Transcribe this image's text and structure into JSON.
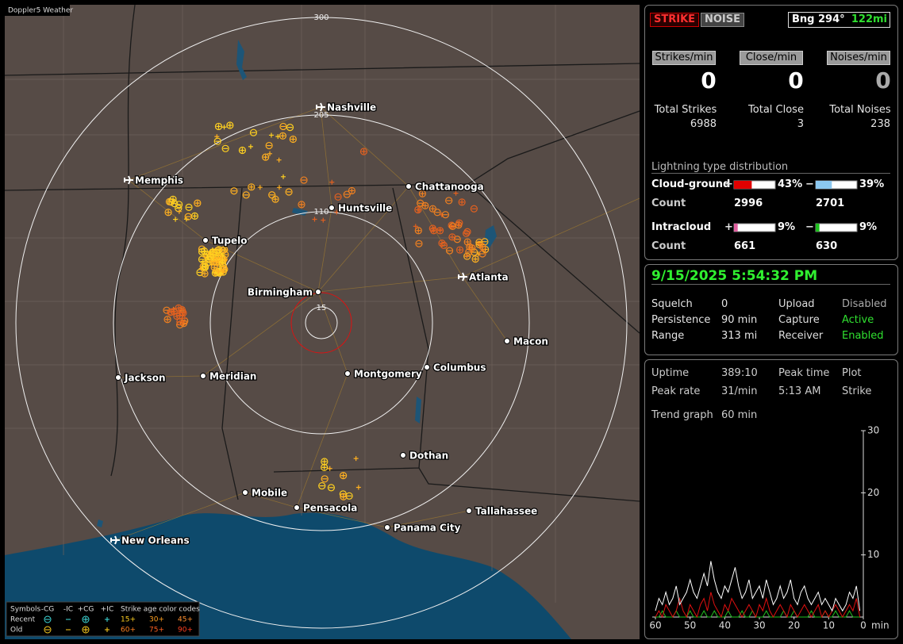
{
  "map": {
    "badge": "Doppler5 Weather",
    "ring_labels": [
      "300",
      "205",
      "110",
      "15"
    ],
    "cities": [
      {
        "name": "Nashville",
        "airport": true
      },
      {
        "name": "Memphis",
        "airport": true
      },
      {
        "name": "Chattanooga",
        "airport": false
      },
      {
        "name": "Huntsville",
        "airport": false
      },
      {
        "name": "Tupelo",
        "airport": false
      },
      {
        "name": "Birmingham",
        "airport": false
      },
      {
        "name": "Atlanta",
        "airport": true
      },
      {
        "name": "Macon",
        "airport": false
      },
      {
        "name": "Jackson",
        "airport": false
      },
      {
        "name": "Meridian",
        "airport": false
      },
      {
        "name": "Montgomery",
        "airport": false
      },
      {
        "name": "Columbus",
        "airport": false
      },
      {
        "name": "Dothan",
        "airport": false
      },
      {
        "name": "Mobile",
        "airport": false
      },
      {
        "name": "Pensacola",
        "airport": false
      },
      {
        "name": "Panama City",
        "airport": false
      },
      {
        "name": "Tallahassee",
        "airport": false
      },
      {
        "name": "New Orleans",
        "airport": true
      }
    ],
    "legend": {
      "symbols_title": "Symbols",
      "symbols": [
        "-CG",
        "-IC",
        "+CG",
        "+IC"
      ],
      "age_title": "Strike age color codes",
      "rows": [
        {
          "label": "Recent",
          "ages": [
            "15+",
            "30+",
            "45+"
          ]
        },
        {
          "label": "Old",
          "ages": [
            "60+",
            "75+",
            "90+"
          ]
        }
      ]
    }
  },
  "strike_panel": {
    "modes": [
      "STRIKE",
      "NOISE"
    ],
    "bearing": "Bng 294°",
    "distance": "122mi",
    "rate_headers": [
      "Strikes/min",
      "Close/min",
      "Noises/min"
    ],
    "rates": [
      0,
      0,
      0
    ],
    "total_labels": [
      "Total Strikes",
      "Total Close",
      "Total Noises"
    ],
    "totals": [
      6988,
      3,
      238
    ],
    "dist_title": "Lightning type distribution",
    "types": [
      {
        "name": "Cloud-ground",
        "pos_sign": "+",
        "pos": {
          "value": 43,
          "label": "43%"
        },
        "pos_color": "#e00000",
        "neg_sign": "−",
        "neg": {
          "value": 39,
          "label": "39%"
        },
        "neg_color": "#8cc8f0",
        "count_label": "Count",
        "pos_count": 2996,
        "neg_count": 2701
      },
      {
        "name": "Intracloud",
        "pos_sign": "+",
        "pos": {
          "value": 9,
          "label": "9%"
        },
        "pos_color": "#e060a0",
        "neg_sign": "−",
        "neg": {
          "value": 9,
          "label": "9%"
        },
        "neg_color": "#20c020",
        "count_label": "Count",
        "pos_count": 661,
        "neg_count": 630
      }
    ]
  },
  "status_panel": {
    "datetime": "9/15/2025 5:54:32 PM",
    "rows": [
      [
        "Squelch",
        "0",
        "Upload",
        "Disabled"
      ],
      [
        "Persistence",
        "90 min",
        "Capture",
        "Active"
      ],
      [
        "Range",
        "313 mi",
        "Receiver",
        "Enabled"
      ]
    ]
  },
  "uptime_panel": {
    "rows": [
      [
        "Uptime",
        "389:10",
        "Peak time",
        "Plot"
      ],
      [
        "Peak rate",
        "31/min",
        "5:13 AM",
        "Strike"
      ]
    ],
    "trend_label": "Trend graph",
    "trend_value": "60 min"
  },
  "chart_data": {
    "type": "line",
    "x": [
      60,
      59,
      58,
      57,
      56,
      55,
      54,
      53,
      52,
      51,
      50,
      49,
      48,
      47,
      46,
      45,
      44,
      43,
      42,
      41,
      40,
      39,
      38,
      37,
      36,
      35,
      34,
      33,
      32,
      31,
      30,
      29,
      28,
      27,
      26,
      25,
      24,
      23,
      22,
      21,
      20,
      19,
      18,
      17,
      16,
      15,
      14,
      13,
      12,
      11,
      10,
      9,
      8,
      7,
      6,
      5,
      4,
      3,
      2,
      1
    ],
    "xlim": [
      60,
      0
    ],
    "xticks": [
      60,
      50,
      40,
      30,
      20,
      10,
      0
    ],
    "x_unit": "min",
    "ylim": [
      0,
      30
    ],
    "yticks": [
      10,
      20,
      30
    ],
    "series": [
      {
        "color": "#ffffff",
        "values": [
          1,
          3,
          2,
          4,
          2,
          3,
          5,
          2,
          3,
          4,
          6,
          4,
          3,
          5,
          7,
          5,
          9,
          6,
          4,
          3,
          5,
          4,
          6,
          8,
          5,
          3,
          4,
          6,
          3,
          4,
          5,
          3,
          6,
          4,
          2,
          3,
          5,
          3,
          4,
          6,
          3,
          2,
          4,
          5,
          3,
          2,
          3,
          4,
          2,
          3,
          2,
          1,
          3,
          2,
          1,
          2,
          4,
          3,
          5,
          1
        ]
      },
      {
        "color": "#e01010",
        "values": [
          0,
          1,
          0,
          2,
          1,
          0,
          1,
          3,
          1,
          0,
          2,
          1,
          0,
          2,
          3,
          1,
          4,
          2,
          1,
          0,
          2,
          1,
          3,
          2,
          1,
          0,
          1,
          2,
          1,
          0,
          2,
          1,
          3,
          1,
          0,
          1,
          2,
          1,
          0,
          2,
          1,
          0,
          1,
          2,
          1,
          0,
          1,
          2,
          0,
          1,
          0,
          1,
          2,
          1,
          0,
          1,
          2,
          1,
          3,
          0
        ]
      },
      {
        "color": "#20c020",
        "values": [
          0,
          0,
          1,
          0,
          0,
          0,
          1,
          0,
          0,
          0,
          1,
          0,
          0,
          0,
          1,
          0,
          0,
          1,
          0,
          0,
          0,
          1,
          0,
          0,
          0,
          1,
          0,
          0,
          1,
          0,
          0,
          0,
          1,
          0,
          0,
          0,
          0,
          1,
          0,
          0,
          1,
          0,
          0,
          0,
          0,
          1,
          0,
          0,
          0,
          1,
          0,
          0,
          1,
          0,
          0,
          0,
          1,
          0,
          0,
          0
        ]
      }
    ]
  }
}
